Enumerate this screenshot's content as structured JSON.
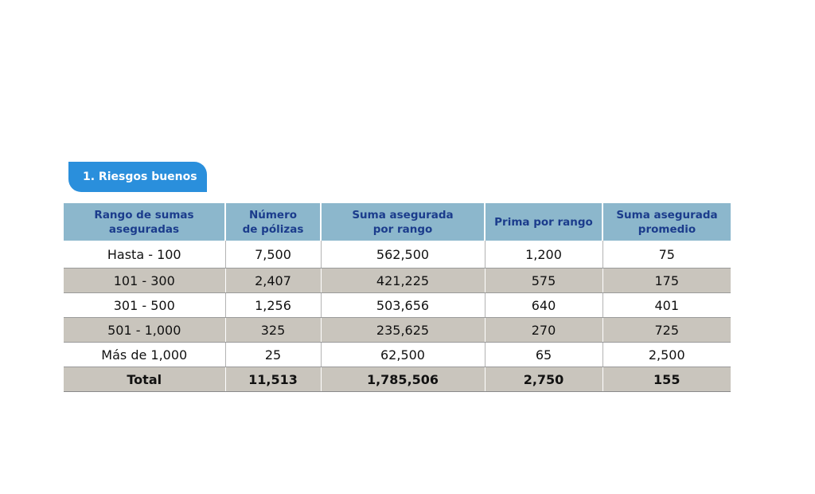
{
  "section": {
    "label": "1. Riesgos buenos"
  },
  "table": {
    "headers": [
      [
        "Rango de sumas",
        "aseguradas"
      ],
      [
        "Número",
        "de pólizas"
      ],
      [
        "Suma asegurada",
        "por rango"
      ],
      [
        "Prima por rango"
      ],
      [
        "Suma asegurada",
        "promedio"
      ]
    ],
    "rows": [
      [
        "Hasta - 100",
        "7,500",
        "562,500",
        "1,200",
        "75"
      ],
      [
        "101 - 300",
        "2,407",
        "421,225",
        "575",
        "175"
      ],
      [
        "301 - 500",
        "1,256",
        "503,656",
        "640",
        "401"
      ],
      [
        "501 - 1,000",
        "325",
        "235,625",
        "270",
        "725"
      ],
      [
        "Más de 1,000",
        "25",
        "62,500",
        "65",
        "2,500"
      ]
    ],
    "total": [
      "Total",
      "11,513",
      "1,785,506",
      "2,750",
      "155"
    ]
  }
}
